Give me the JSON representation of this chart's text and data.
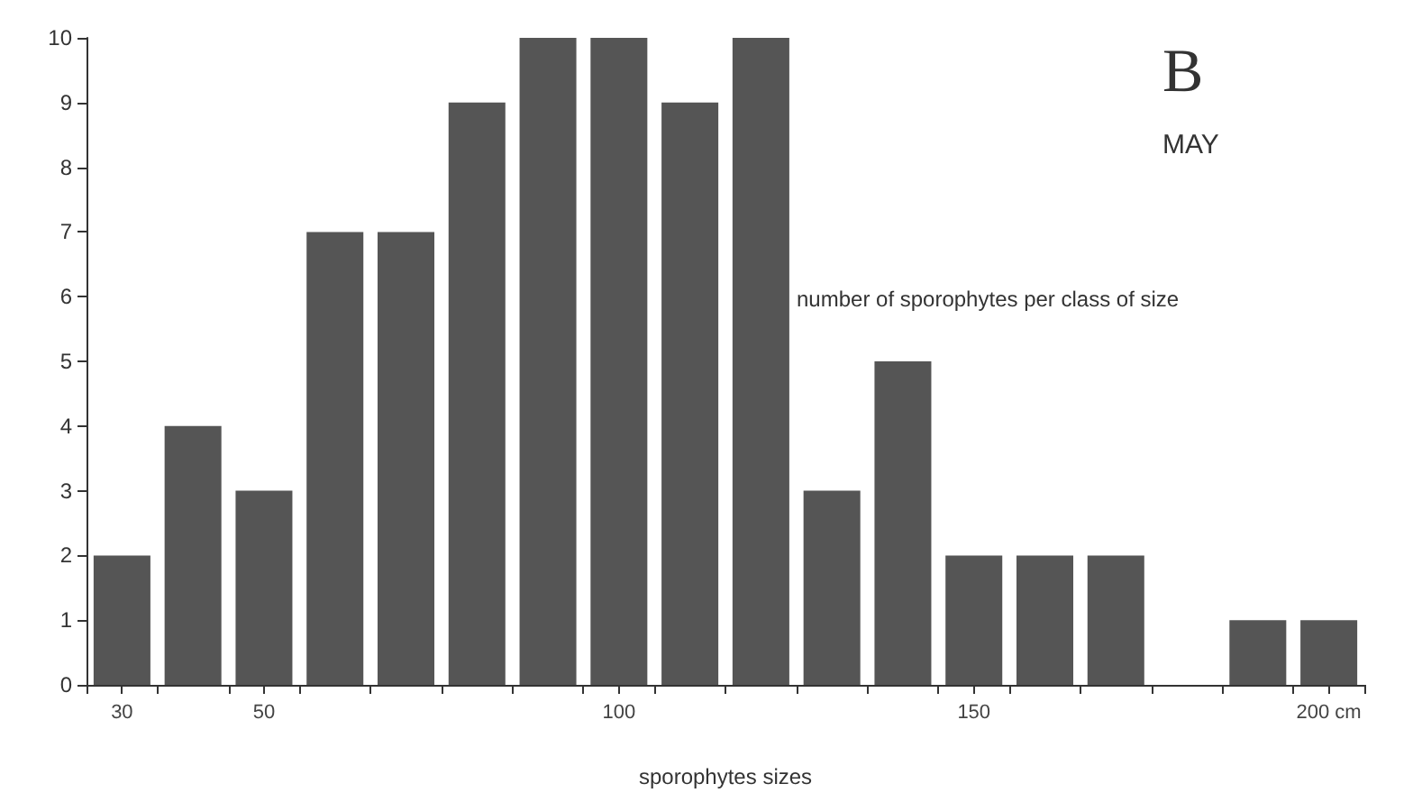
{
  "chart_data": {
    "type": "bar",
    "title": "B",
    "subtitle": "MAY",
    "xlabel": "sporophytes sizes",
    "ylabel": "number of sporophytes per class of size",
    "x": [
      30,
      40,
      50,
      60,
      70,
      80,
      90,
      100,
      110,
      120,
      130,
      140,
      150,
      160,
      170,
      180,
      190,
      200
    ],
    "values": [
      2,
      4,
      3,
      7,
      7,
      9,
      10,
      10,
      9,
      10,
      3,
      5,
      2,
      2,
      2,
      0,
      1,
      1
    ],
    "color": "#555555",
    "xlim": [
      25,
      205
    ],
    "xticks": [
      {
        "value": 25,
        "label": null
      },
      {
        "value": 30,
        "label": "30"
      },
      {
        "value": 35,
        "label": null
      },
      {
        "value": 45,
        "label": null
      },
      {
        "value": 50,
        "label": "50"
      },
      {
        "value": 55,
        "label": null
      },
      {
        "value": 65,
        "label": null
      },
      {
        "value": 75,
        "label": null
      },
      {
        "value": 85,
        "label": null
      },
      {
        "value": 95,
        "label": null
      },
      {
        "value": 100,
        "label": "100"
      },
      {
        "value": 105,
        "label": null
      },
      {
        "value": 115,
        "label": null
      },
      {
        "value": 125,
        "label": null
      },
      {
        "value": 135,
        "label": null
      },
      {
        "value": 145,
        "label": null
      },
      {
        "value": 150,
        "label": "150"
      },
      {
        "value": 155,
        "label": null
      },
      {
        "value": 165,
        "label": null
      },
      {
        "value": 175,
        "label": null
      },
      {
        "value": 185,
        "label": null
      },
      {
        "value": 195,
        "label": null
      },
      {
        "value": 200,
        "label": "200 cm"
      },
      {
        "value": 205,
        "label": null
      }
    ],
    "ylim": [
      0,
      10
    ],
    "yticks": [
      0,
      1,
      2,
      3,
      4,
      5,
      6,
      7,
      8,
      9,
      10
    ],
    "grid": false
  }
}
